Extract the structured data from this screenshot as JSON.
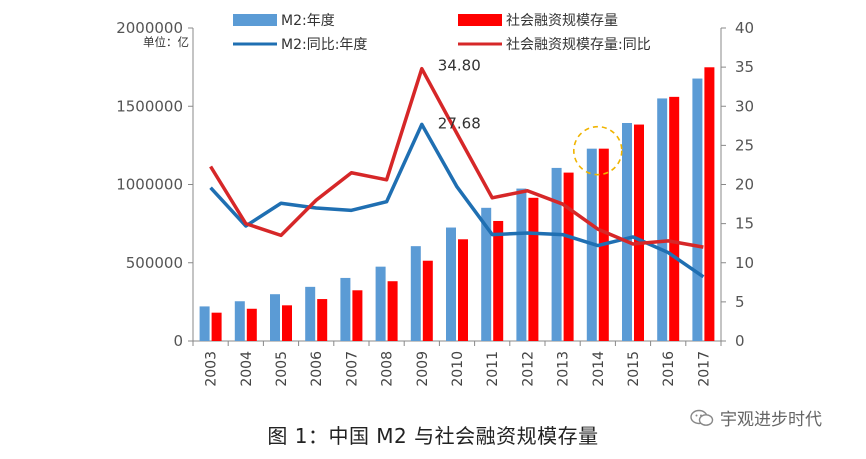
{
  "chart_data": {
    "type": "bar",
    "unit_label": "单位：亿",
    "categories": [
      "2003",
      "2004",
      "2005",
      "2006",
      "2007",
      "2008",
      "2009",
      "2010",
      "2011",
      "2012",
      "2013",
      "2014",
      "2015",
      "2016",
      "2017"
    ],
    "y_left_lim": [
      0,
      2000000
    ],
    "y_left_ticks": [
      "0",
      "500000",
      "1000000",
      "1500000",
      "2000000"
    ],
    "y_right_lim": [
      0,
      40
    ],
    "y_right_ticks": [
      "0",
      "5",
      "10",
      "15",
      "20",
      "25",
      "30",
      "35",
      "40"
    ],
    "series": [
      {
        "name": "M2:年度",
        "type": "bar",
        "axis": "left",
        "color": "#5b9bd5",
        "values": [
          221000,
          254000,
          299000,
          346000,
          403000,
          475000,
          606000,
          725000,
          851000,
          974000,
          1106000,
          1229000,
          1393000,
          1550000,
          1677000
        ]
      },
      {
        "name": "社会融资规模存量",
        "type": "bar",
        "axis": "left",
        "color": "#ff0000",
        "values": [
          181000,
          206000,
          228000,
          268000,
          324000,
          382000,
          513000,
          650000,
          767000,
          915000,
          1076000,
          1229000,
          1383000,
          1560000,
          1749000
        ]
      },
      {
        "name": "M2:同比:年度",
        "type": "line",
        "axis": "right",
        "color": "#1f6fb2",
        "values": [
          19.6,
          14.7,
          17.6,
          17.0,
          16.7,
          17.8,
          27.68,
          19.7,
          13.6,
          13.8,
          13.6,
          12.2,
          13.3,
          11.3,
          8.2
        ]
      },
      {
        "name": "社会融资规模存量:同比",
        "type": "line",
        "axis": "right",
        "color": "#d62728",
        "values": [
          22.3,
          15.0,
          13.5,
          18.0,
          21.5,
          20.6,
          34.8,
          26.5,
          18.3,
          19.2,
          17.5,
          14.3,
          12.4,
          12.8,
          12.0
        ]
      }
    ],
    "annotations": [
      {
        "text": "34.80",
        "series": "社会融资规模存量:同比",
        "category": "2009"
      },
      {
        "text": "27.68",
        "series": "M2:同比:年度",
        "category": "2009"
      }
    ],
    "highlight_category": "2014",
    "highlight_color": "#f0b400",
    "legend_placement": "top",
    "grid": false
  },
  "caption": "图 1：中国 M2 与社会融资规模存量",
  "watermark": "宇观进步时代"
}
